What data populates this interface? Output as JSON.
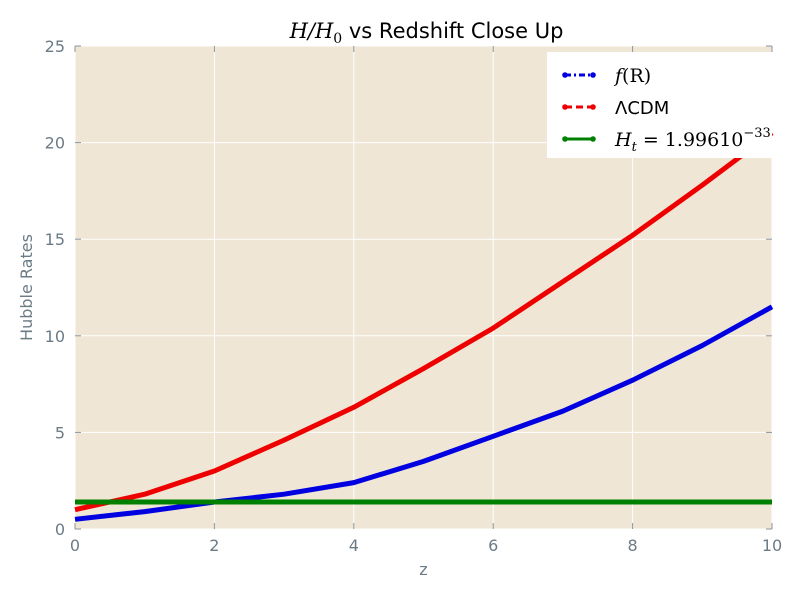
{
  "chart_data": {
    "type": "line",
    "title_math": "H/H",
    "title_sub": "0",
    "title_rest": " vs Redshift Close Up",
    "xlabel": "z",
    "ylabel": "Hubble Rates",
    "xlim": [
      0,
      10
    ],
    "ylim": [
      0,
      25
    ],
    "xticks": [
      0,
      2,
      4,
      6,
      8,
      10
    ],
    "yticks": [
      0,
      5,
      10,
      15,
      20,
      25
    ],
    "grid": true,
    "legend_placement": "top-right",
    "colors": {
      "plot_background": "#efe6d5",
      "grid": "#ffffff",
      "f_R": "#0000e0",
      "lcdm": "#ee0000",
      "h_t": "#008000"
    },
    "series": [
      {
        "name": "f(R)",
        "legend_main": "f",
        "legend_rest": "(R)",
        "style": "dash-dot",
        "x": [
          0,
          1,
          2,
          3,
          4,
          5,
          6,
          7,
          8,
          9,
          10
        ],
        "y": [
          0.5,
          0.9,
          1.4,
          1.8,
          2.4,
          3.5,
          4.8,
          6.1,
          7.7,
          9.5,
          11.5
        ]
      },
      {
        "name": "ΛCDM",
        "style": "dashed",
        "x": [
          0,
          1,
          2,
          3,
          4,
          5,
          6,
          7,
          8,
          9,
          10
        ],
        "y": [
          1.0,
          1.8,
          3.0,
          4.6,
          6.3,
          8.3,
          10.4,
          12.8,
          15.2,
          17.8,
          20.5
        ]
      },
      {
        "name": "H_t = 1.99610^-33",
        "legend_main": "H",
        "legend_sub": "t",
        "legend_eq": " = 1.99610",
        "legend_sup": "−33",
        "style": "solid",
        "x": [
          0,
          10
        ],
        "y": [
          1.4,
          1.4
        ]
      }
    ]
  }
}
